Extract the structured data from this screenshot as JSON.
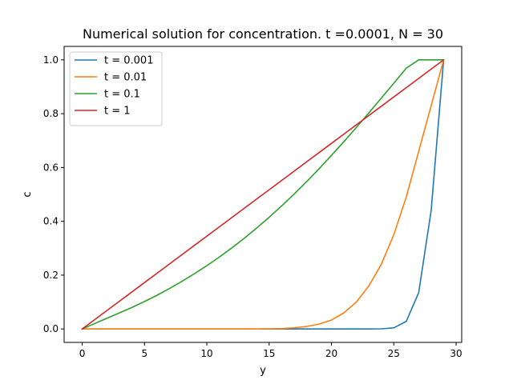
{
  "chart_data": {
    "type": "line",
    "title": "Numerical solution for concentration. t =0.0001, N = 30",
    "xlabel": "y",
    "ylabel": "c",
    "xlim": [
      -1.45,
      30.45
    ],
    "ylim": [
      -0.05,
      1.05
    ],
    "xticks": [
      0,
      5,
      10,
      15,
      20,
      25,
      30
    ],
    "yticks": [
      0.0,
      0.2,
      0.4,
      0.6,
      0.8,
      1.0
    ],
    "xtick_labels": [
      "0",
      "5",
      "10",
      "15",
      "20",
      "25",
      "30"
    ],
    "ytick_labels": [
      "0.0",
      "0.2",
      "0.4",
      "0.6",
      "0.8",
      "1.0"
    ],
    "grid": false,
    "legend_position": "top-left",
    "x": [
      0,
      1,
      2,
      3,
      4,
      5,
      6,
      7,
      8,
      9,
      10,
      11,
      12,
      13,
      14,
      15,
      16,
      17,
      18,
      19,
      20,
      21,
      22,
      23,
      24,
      25,
      26,
      27,
      28,
      29
    ],
    "series": [
      {
        "name": "t = 0.001",
        "color": "#1f77b4",
        "values": [
          0,
          0,
          0,
          0,
          0,
          0,
          0,
          0,
          0,
          0,
          0,
          0,
          0,
          0,
          0,
          0,
          0,
          0,
          0,
          0,
          0,
          0,
          0,
          0,
          0.0005,
          0.004,
          0.028,
          0.135,
          0.44,
          1.0
        ]
      },
      {
        "name": "t = 0.01",
        "color": "#ff7f0e",
        "values": [
          0,
          0,
          0,
          0,
          0,
          0,
          0,
          0,
          0,
          0,
          0,
          0,
          0,
          0,
          0,
          0.0005,
          0.0015,
          0.004,
          0.009,
          0.018,
          0.033,
          0.06,
          0.1,
          0.16,
          0.24,
          0.35,
          0.49,
          0.66,
          0.83,
          1.0
        ]
      },
      {
        "name": "t = 0.1",
        "color": "#2ca02c",
        "values": [
          0,
          0.02,
          0.04,
          0.06,
          0.08,
          0.102,
          0.125,
          0.15,
          0.177,
          0.205,
          0.235,
          0.267,
          0.301,
          0.337,
          0.375,
          0.415,
          0.457,
          0.501,
          0.547,
          0.595,
          0.645,
          0.696,
          0.749,
          0.803,
          0.858,
          0.913,
          0.969,
          1.0,
          1.0,
          1.0
        ]
      },
      {
        "name": "t = 1",
        "color": "#d62728",
        "values": [
          0,
          0.0345,
          0.069,
          0.1034,
          0.1379,
          0.1724,
          0.2069,
          0.2414,
          0.2759,
          0.3103,
          0.3448,
          0.3793,
          0.4138,
          0.4483,
          0.4828,
          0.5172,
          0.5517,
          0.5862,
          0.6207,
          0.6552,
          0.6897,
          0.7241,
          0.7586,
          0.7931,
          0.8276,
          0.8621,
          0.8966,
          0.931,
          0.9655,
          1.0
        ]
      }
    ]
  }
}
